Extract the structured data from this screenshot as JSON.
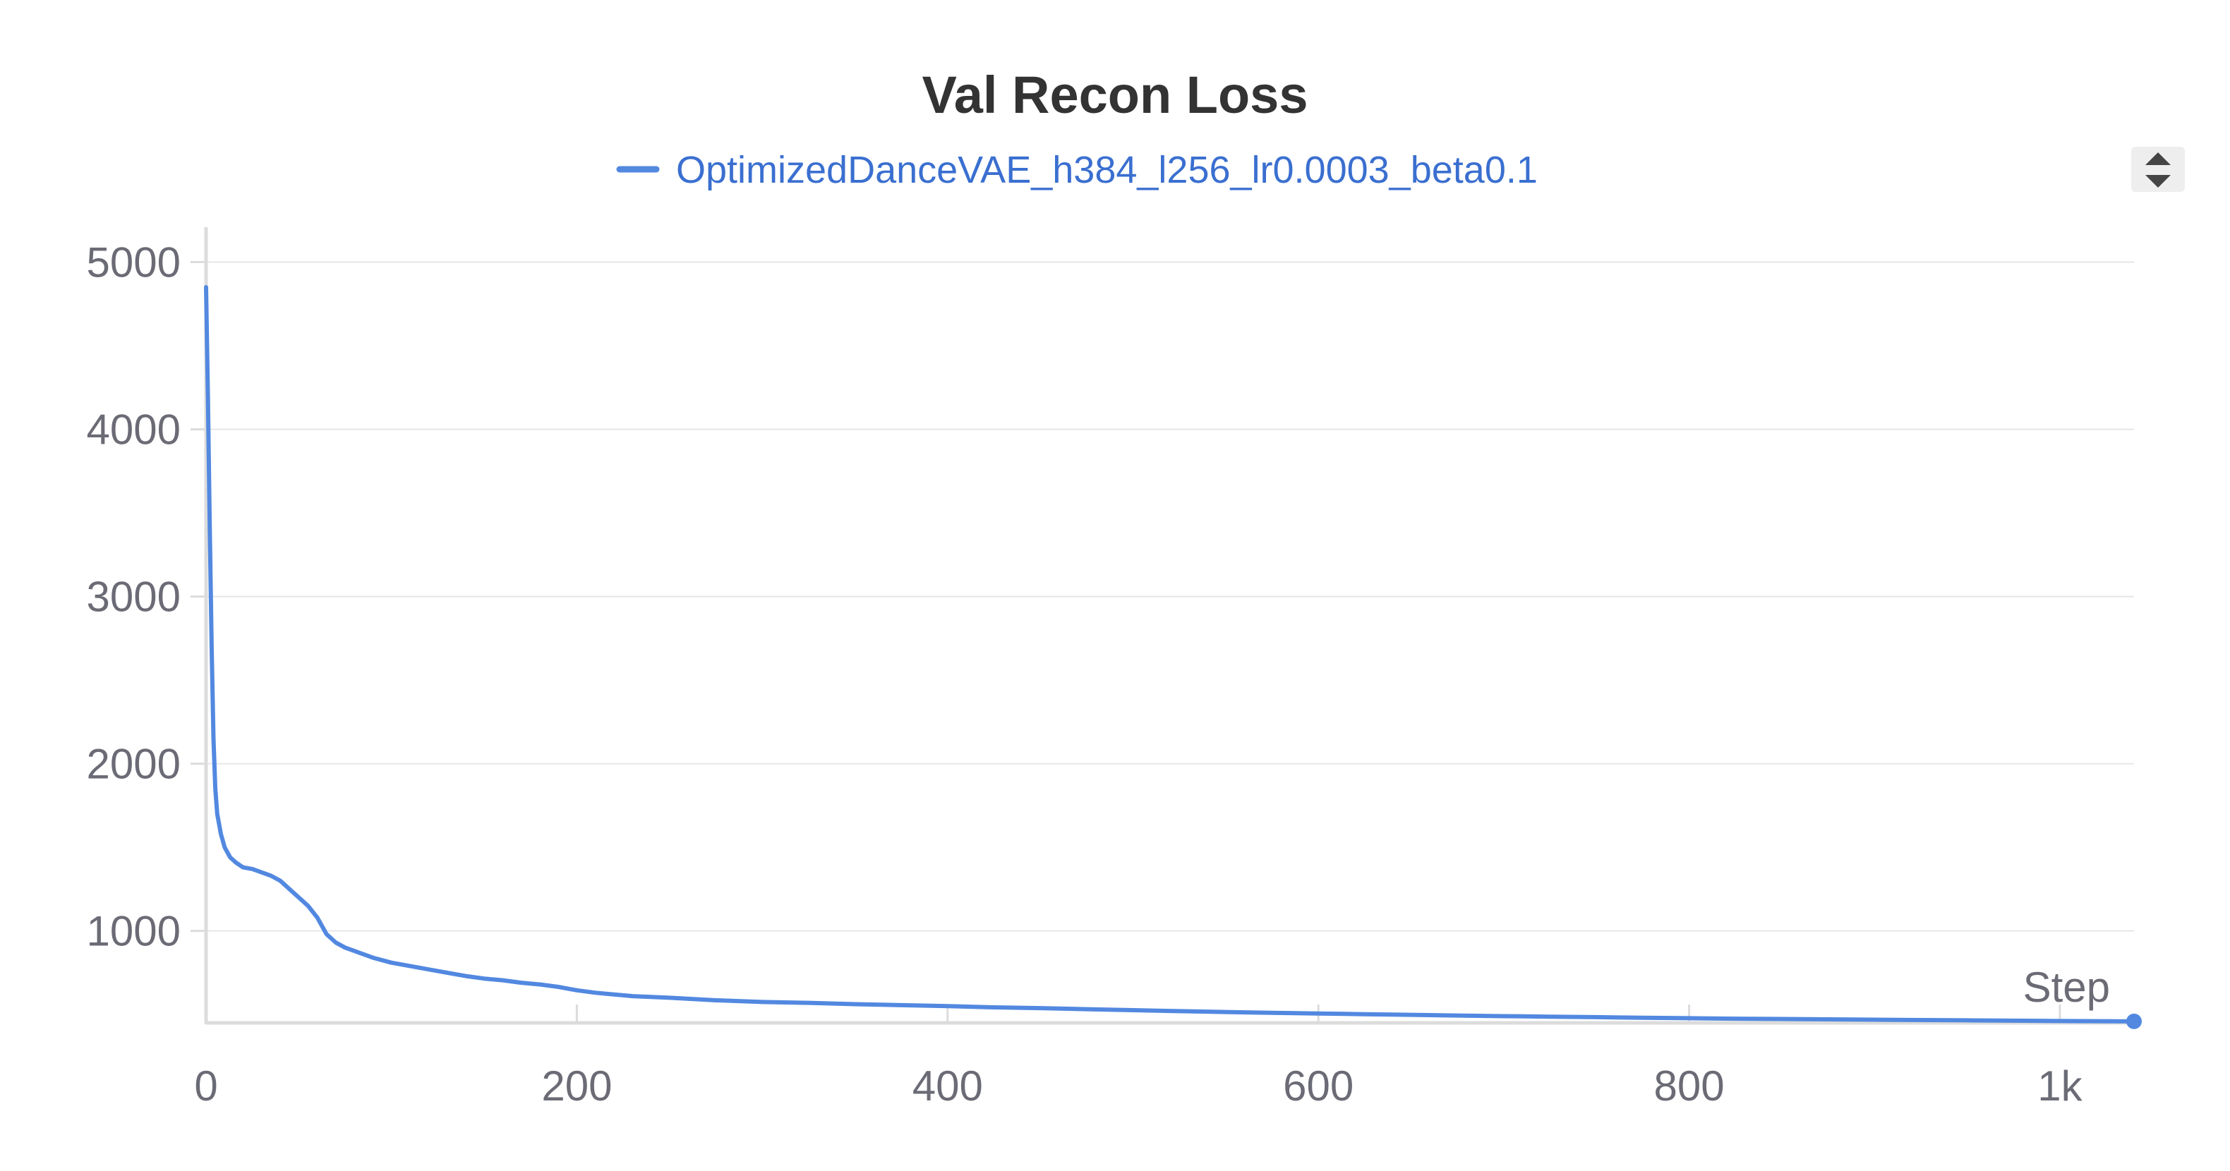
{
  "colors": {
    "series": "#5288e0",
    "legend_text": "#3a6fd0",
    "grid": "#e6e6ea",
    "axis": "#dcdcdc",
    "scroll_bg": "#eeeeee",
    "scroll_arrow": "#444444"
  },
  "legend": {
    "scroll_icon": "scroll-up-down-icon"
  },
  "chart_data": {
    "type": "line",
    "title": "Val Recon Loss",
    "xlabel": "Step",
    "ylabel": "",
    "xlim": [
      0,
      1040
    ],
    "ylim": [
      450,
      5150
    ],
    "x_ticks": [
      0,
      200,
      400,
      600,
      800,
      1000
    ],
    "x_tick_labels": [
      "0",
      "200",
      "400",
      "600",
      "800",
      "1k"
    ],
    "y_ticks": [
      1000,
      2000,
      3000,
      4000,
      5000
    ],
    "y_tick_labels": [
      "1000",
      "2000",
      "3000",
      "4000",
      "5000"
    ],
    "grid": true,
    "legend_position": "top-center",
    "series": [
      {
        "name": "OptimizedDanceVAE_h384_l256_lr0.0003_beta0.1",
        "x": [
          0,
          1,
          2,
          3,
          4,
          5,
          6,
          8,
          10,
          13,
          16,
          20,
          25,
          30,
          35,
          40,
          45,
          50,
          55,
          60,
          65,
          70,
          75,
          80,
          90,
          100,
          110,
          120,
          130,
          140,
          150,
          160,
          170,
          180,
          190,
          200,
          210,
          220,
          230,
          240,
          250,
          275,
          300,
          325,
          350,
          375,
          400,
          425,
          450,
          475,
          500,
          525,
          550,
          575,
          600,
          625,
          650,
          675,
          700,
          725,
          750,
          775,
          800,
          825,
          850,
          875,
          900,
          925,
          950,
          975,
          1000,
          1020,
          1040
        ],
        "y": [
          4850,
          4200,
          3400,
          2700,
          2150,
          1850,
          1700,
          1580,
          1500,
          1440,
          1410,
          1380,
          1370,
          1350,
          1330,
          1300,
          1250,
          1200,
          1150,
          1080,
          980,
          930,
          900,
          880,
          840,
          810,
          790,
          770,
          750,
          730,
          715,
          705,
          690,
          680,
          665,
          645,
          630,
          620,
          610,
          605,
          600,
          585,
          575,
          570,
          562,
          556,
          550,
          543,
          538,
          532,
          526,
          520,
          515,
          510,
          506,
          502,
          498,
          494,
          490,
          487,
          484,
          481,
          478,
          475,
          473,
          471,
          469,
          467,
          465,
          463,
          461,
          460,
          459
        ]
      }
    ]
  }
}
